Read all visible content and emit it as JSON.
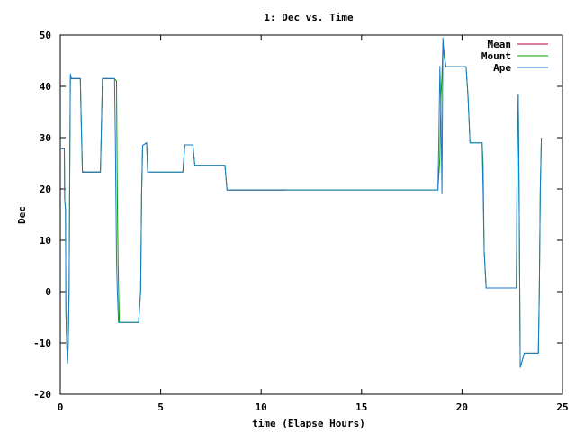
{
  "chart_data": {
    "type": "line",
    "title": "1: Dec vs. Time",
    "xlabel": "time (Elapse Hours)",
    "ylabel": "Dec",
    "xlim": [
      0,
      25
    ],
    "ylim": [
      -20,
      50
    ],
    "xticks": [
      "0",
      "5",
      "10",
      "15",
      "20",
      "25"
    ],
    "yticks": [
      "-20",
      "-10",
      "0",
      "10",
      "20",
      "30",
      "40",
      "50"
    ],
    "grid": false,
    "legend_position": "top-right",
    "series": [
      {
        "name": "Mean",
        "color": "#b8003c",
        "points": [
          [
            0.5,
            41.5
          ],
          [
            1.0,
            41.5
          ],
          [
            1.1,
            23.3
          ],
          [
            2.0,
            23.3
          ],
          [
            2.1,
            41.5
          ],
          [
            2.6,
            41.5
          ],
          [
            8.3,
            19.8
          ],
          [
            11.2,
            19.8
          ],
          [
            19.2,
            43.8
          ],
          [
            20.2,
            43.8
          ]
        ]
      },
      {
        "name": "Mount",
        "color": "#00a000",
        "points": [
          [
            0.0,
            27.8
          ],
          [
            0.2,
            27.8
          ],
          [
            0.22,
            18.0
          ],
          [
            0.26,
            16.0
          ],
          [
            0.28,
            -3.5
          ],
          [
            0.32,
            -10.0
          ],
          [
            0.36,
            -14.0
          ],
          [
            0.4,
            -10.0
          ],
          [
            0.44,
            0.0
          ],
          [
            0.48,
            28.0
          ],
          [
            0.5,
            41.5
          ],
          [
            1.0,
            41.5
          ],
          [
            1.02,
            37.0
          ],
          [
            1.1,
            23.3
          ],
          [
            2.0,
            23.3
          ],
          [
            2.1,
            41.5
          ],
          [
            2.7,
            41.5
          ],
          [
            2.8,
            41.0
          ],
          [
            2.84,
            18.0
          ],
          [
            2.88,
            5.0
          ],
          [
            2.94,
            -6.0
          ],
          [
            3.9,
            -6.0
          ],
          [
            4.0,
            0.0
          ],
          [
            4.05,
            19.0
          ],
          [
            4.1,
            28.5
          ],
          [
            4.3,
            29.0
          ],
          [
            4.35,
            23.3
          ],
          [
            6.1,
            23.3
          ],
          [
            6.2,
            28.6
          ],
          [
            6.6,
            28.6
          ],
          [
            6.7,
            24.6
          ],
          [
            8.2,
            24.6
          ],
          [
            8.3,
            19.8
          ],
          [
            18.8,
            19.8
          ],
          [
            18.9,
            26.0
          ],
          [
            18.95,
            38.0
          ],
          [
            19.0,
            42.0
          ],
          [
            19.05,
            48.5
          ],
          [
            19.2,
            43.8
          ],
          [
            20.2,
            43.8
          ],
          [
            20.3,
            38.0
          ],
          [
            20.4,
            29.0
          ],
          [
            21.0,
            29.0
          ],
          [
            21.05,
            25.0
          ],
          [
            21.1,
            8.0
          ],
          [
            21.2,
            0.7
          ],
          [
            22.7,
            0.7
          ],
          [
            22.75,
            29.0
          ],
          [
            22.8,
            38.5
          ],
          [
            22.85,
            15.0
          ],
          [
            22.9,
            -14.8
          ],
          [
            23.1,
            -12.0
          ],
          [
            23.8,
            -12.0
          ],
          [
            23.85,
            0.0
          ],
          [
            23.9,
            20.0
          ],
          [
            23.95,
            30.0
          ]
        ]
      },
      {
        "name": "Ape",
        "color": "#1e78c8",
        "points": [
          [
            0.0,
            27.8
          ],
          [
            0.2,
            27.8
          ],
          [
            0.22,
            18.0
          ],
          [
            0.26,
            16.0
          ],
          [
            0.28,
            -3.5
          ],
          [
            0.32,
            -10.0
          ],
          [
            0.36,
            -14.0
          ],
          [
            0.4,
            -10.0
          ],
          [
            0.44,
            0.0
          ],
          [
            0.48,
            28.0
          ],
          [
            0.5,
            42.5
          ],
          [
            0.55,
            41.5
          ],
          [
            1.0,
            41.5
          ],
          [
            1.02,
            37.0
          ],
          [
            1.1,
            23.3
          ],
          [
            2.0,
            23.3
          ],
          [
            2.1,
            41.5
          ],
          [
            2.7,
            41.5
          ],
          [
            2.74,
            30.0
          ],
          [
            2.8,
            6.0
          ],
          [
            2.84,
            0.0
          ],
          [
            2.9,
            -6.0
          ],
          [
            3.9,
            -6.0
          ],
          [
            4.0,
            0.0
          ],
          [
            4.05,
            19.0
          ],
          [
            4.1,
            28.5
          ],
          [
            4.3,
            29.0
          ],
          [
            4.35,
            23.3
          ],
          [
            6.1,
            23.3
          ],
          [
            6.2,
            28.6
          ],
          [
            6.6,
            28.6
          ],
          [
            6.7,
            24.6
          ],
          [
            8.2,
            24.6
          ],
          [
            8.3,
            19.8
          ],
          [
            18.8,
            19.8
          ],
          [
            18.85,
            30.0
          ],
          [
            18.9,
            44.0
          ],
          [
            18.95,
            35.0
          ],
          [
            19.0,
            19.0
          ],
          [
            19.05,
            49.5
          ],
          [
            19.1,
            46.0
          ],
          [
            19.2,
            43.8
          ],
          [
            20.2,
            43.8
          ],
          [
            20.3,
            38.0
          ],
          [
            20.4,
            29.0
          ],
          [
            21.0,
            29.0
          ],
          [
            21.05,
            20.0
          ],
          [
            21.1,
            8.0
          ],
          [
            21.2,
            0.7
          ],
          [
            22.7,
            0.7
          ],
          [
            22.75,
            29.0
          ],
          [
            22.8,
            38.5
          ],
          [
            22.85,
            15.0
          ],
          [
            22.9,
            -14.8
          ],
          [
            23.1,
            -12.0
          ],
          [
            23.8,
            -12.0
          ],
          [
            23.85,
            0.0
          ],
          [
            23.9,
            20.0
          ],
          [
            23.95,
            30.0
          ]
        ]
      }
    ]
  }
}
